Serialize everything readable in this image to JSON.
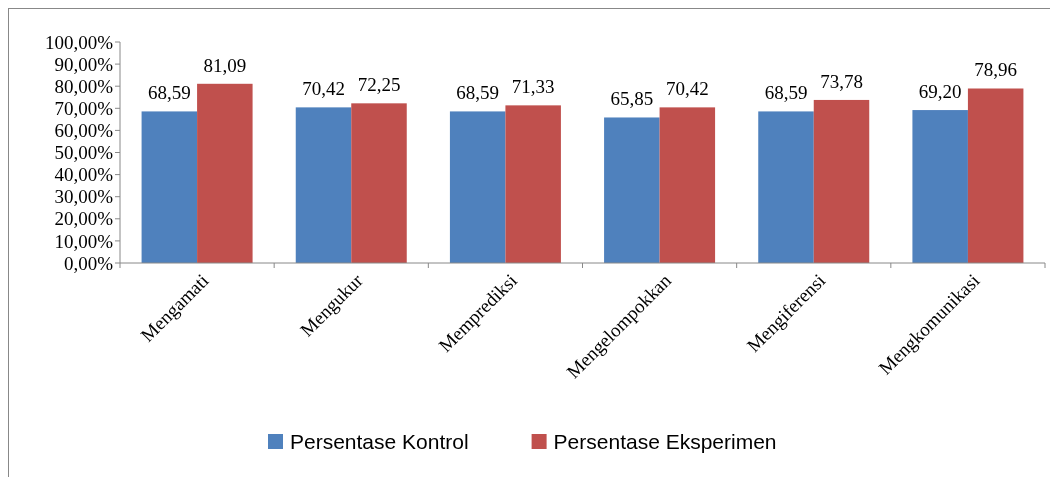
{
  "chart_data": {
    "type": "bar",
    "categories": [
      "Mengamati",
      "Mengukur",
      "Memprediksi",
      "Mengelompokkan",
      "Mengiferensi",
      "Mengkomunikasi"
    ],
    "series": [
      {
        "name": "Persentase Kontrol",
        "color": "#4f81bd",
        "values": [
          68.59,
          70.42,
          68.59,
          65.85,
          68.59,
          69.2
        ],
        "value_labels": [
          "68,59",
          "70,42",
          "68,59",
          "65,85",
          "68,59",
          "69,20"
        ]
      },
      {
        "name": "Persentase Eksperimen",
        "color": "#c0504d",
        "values": [
          81.09,
          72.25,
          71.33,
          70.42,
          73.78,
          78.96
        ],
        "value_labels": [
          "81,09",
          "72,25",
          "71,33",
          "70,42",
          "73,78",
          "78,96"
        ]
      }
    ],
    "ylim": [
      0,
      100
    ],
    "yticks": [
      {
        "value": 0,
        "label": "0,00%"
      },
      {
        "value": 10,
        "label": "10,00%"
      },
      {
        "value": 20,
        "label": "20,00%"
      },
      {
        "value": 30,
        "label": "30,00%"
      },
      {
        "value": 40,
        "label": "40,00%"
      },
      {
        "value": 50,
        "label": "50,00%"
      },
      {
        "value": 60,
        "label": "60,00%"
      },
      {
        "value": 70,
        "label": "70,00%"
      },
      {
        "value": 80,
        "label": "80,00%"
      },
      {
        "value": 90,
        "label": "90,00%"
      },
      {
        "value": 100,
        "label": "100,00%"
      }
    ],
    "grid": false,
    "legend": "bottom"
  }
}
